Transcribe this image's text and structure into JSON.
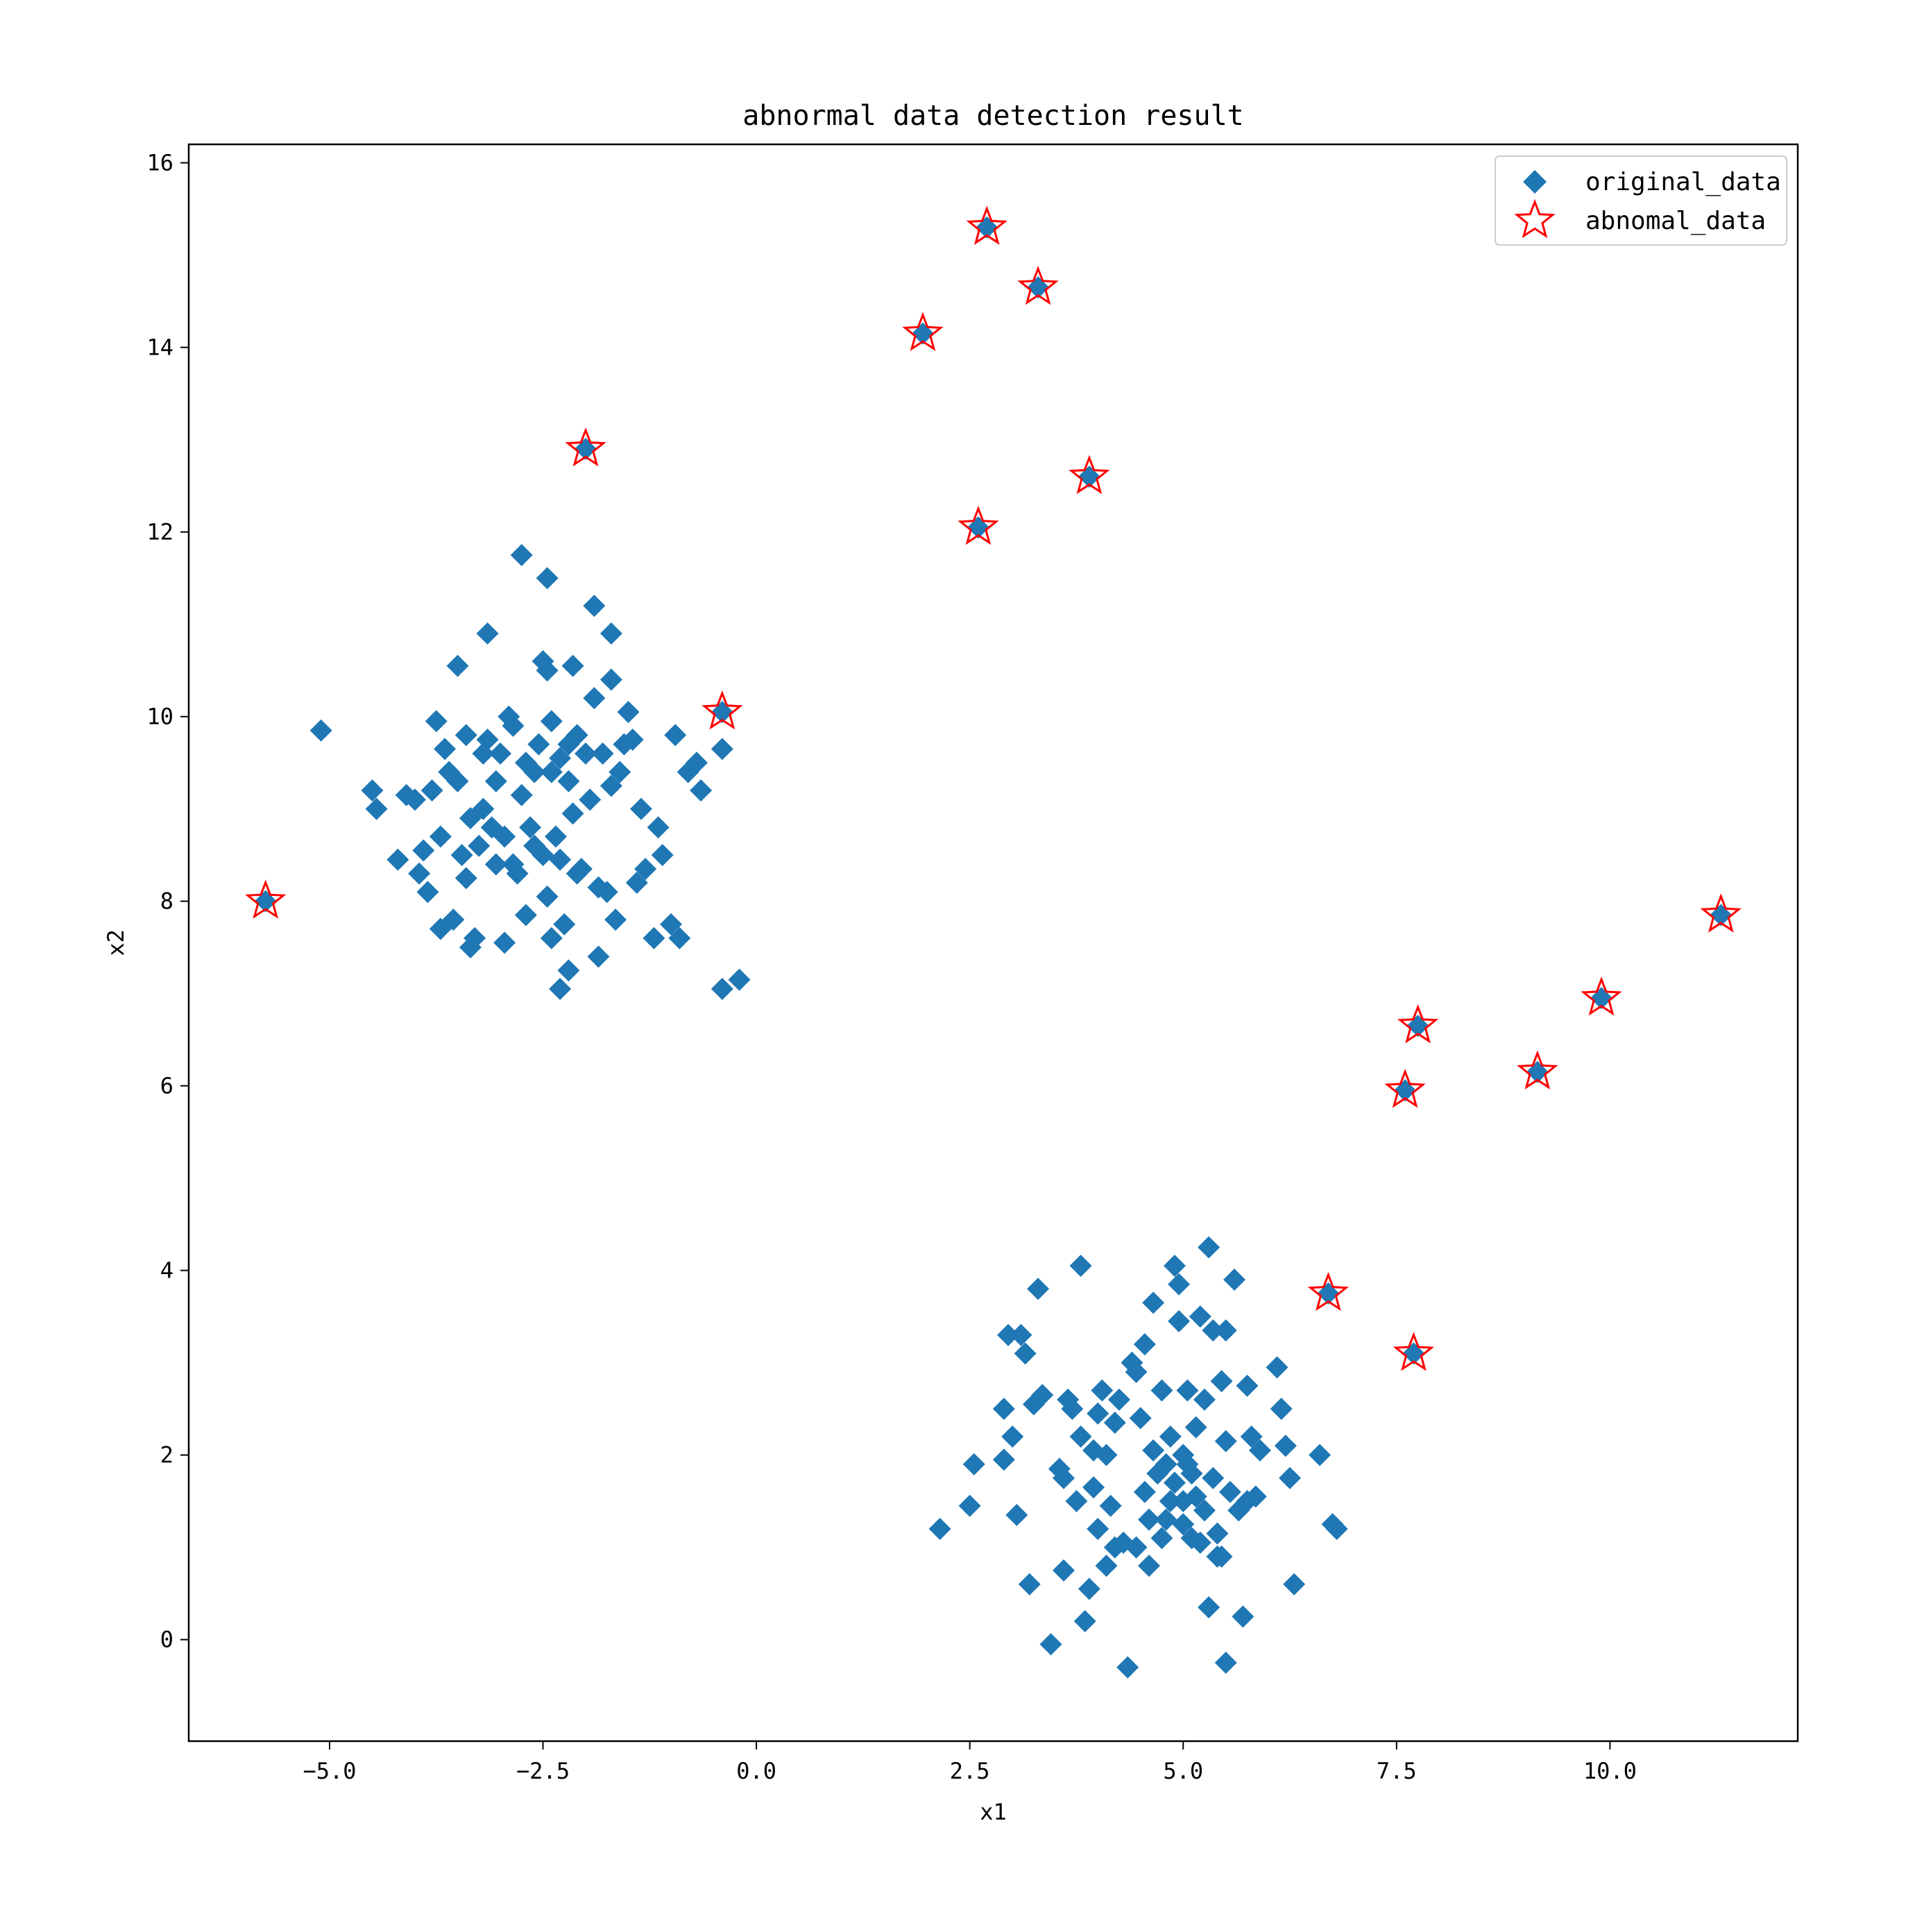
{
  "chart_data": {
    "type": "scatter",
    "title": "abnormal data detection result",
    "xlabel": "x1",
    "ylabel": "x2",
    "xlim": [
      -6.65,
      12.2
    ],
    "ylim": [
      -1.1,
      16.2
    ],
    "xticks": [
      -5.0,
      -2.5,
      0.0,
      2.5,
      5.0,
      7.5,
      10.0
    ],
    "xtick_labels": [
      "−5.0",
      "−2.5",
      "0.0",
      "2.5",
      "5.0",
      "7.5",
      "10.0"
    ],
    "yticks": [
      0,
      2,
      4,
      6,
      8,
      10,
      12,
      14,
      16
    ],
    "ytick_labels": [
      "0",
      "2",
      "4",
      "6",
      "8",
      "10",
      "12",
      "14",
      "16"
    ],
    "legend_position": "top-right",
    "series": [
      {
        "name": "original_data",
        "marker": "diamond",
        "color": "#1f77b4",
        "points": [
          [
            -5.1,
            9.85
          ],
          [
            -4.5,
            9.2
          ],
          [
            -4.45,
            9.0
          ],
          [
            -4.2,
            8.45
          ],
          [
            -4.1,
            9.15
          ],
          [
            -4.0,
            9.1
          ],
          [
            -3.95,
            8.3
          ],
          [
            -3.9,
            8.55
          ],
          [
            -3.85,
            8.1
          ],
          [
            -3.8,
            9.2
          ],
          [
            -3.75,
            9.95
          ],
          [
            -3.7,
            8.7
          ],
          [
            -3.65,
            9.65
          ],
          [
            -3.6,
            9.4
          ],
          [
            -3.55,
            7.8
          ],
          [
            -3.5,
            9.3
          ],
          [
            -3.45,
            8.5
          ],
          [
            -3.4,
            9.8
          ],
          [
            -3.35,
            8.9
          ],
          [
            -3.3,
            7.6
          ],
          [
            -3.25,
            8.6
          ],
          [
            -3.2,
            9.0
          ],
          [
            -3.15,
            9.75
          ],
          [
            -3.1,
            8.8
          ],
          [
            -3.05,
            8.4
          ],
          [
            -3.0,
            9.6
          ],
          [
            -2.95,
            8.7
          ],
          [
            -2.9,
            10.0
          ],
          [
            -2.85,
            9.9
          ],
          [
            -2.8,
            8.3
          ],
          [
            -2.75,
            9.15
          ],
          [
            -2.7,
            7.85
          ],
          [
            -2.65,
            8.8
          ],
          [
            -2.6,
            9.4
          ],
          [
            -2.55,
            9.7
          ],
          [
            -2.5,
            8.5
          ],
          [
            -2.45,
            8.05
          ],
          [
            -2.4,
            9.95
          ],
          [
            -2.35,
            8.7
          ],
          [
            -2.3,
            9.55
          ],
          [
            -2.25,
            7.75
          ],
          [
            -2.2,
            9.3
          ],
          [
            -2.15,
            8.95
          ],
          [
            -2.1,
            9.8
          ],
          [
            -2.05,
            8.35
          ],
          [
            -2.0,
            9.6
          ],
          [
            -1.95,
            9.1
          ],
          [
            -1.9,
            10.2
          ],
          [
            -1.85,
            8.15
          ],
          [
            -1.8,
            9.6
          ],
          [
            -1.75,
            8.1
          ],
          [
            -1.7,
            9.25
          ],
          [
            -1.65,
            7.8
          ],
          [
            -1.6,
            9.4
          ],
          [
            -1.55,
            9.7
          ],
          [
            -1.5,
            10.05
          ],
          [
            -1.45,
            9.75
          ],
          [
            -1.4,
            8.2
          ],
          [
            -1.35,
            9.0
          ],
          [
            -1.3,
            8.35
          ],
          [
            -1.2,
            7.6
          ],
          [
            -1.15,
            8.8
          ],
          [
            -1.1,
            8.5
          ],
          [
            -1.0,
            7.75
          ],
          [
            -0.95,
            9.8
          ],
          [
            -0.9,
            7.6
          ],
          [
            -0.8,
            9.4
          ],
          [
            -0.7,
            9.5
          ],
          [
            -0.65,
            9.2
          ],
          [
            -0.4,
            9.65
          ],
          [
            -0.4,
            7.05
          ],
          [
            -0.2,
            7.15
          ],
          [
            -3.5,
            10.55
          ],
          [
            -3.15,
            10.9
          ],
          [
            -2.75,
            11.75
          ],
          [
            -2.45,
            11.5
          ],
          [
            -2.45,
            10.5
          ],
          [
            -2.15,
            10.55
          ],
          [
            -1.9,
            11.2
          ],
          [
            -1.7,
            10.9
          ],
          [
            -1.7,
            10.4
          ],
          [
            -2.5,
            10.6
          ],
          [
            -3.35,
            7.5
          ],
          [
            -2.95,
            7.55
          ],
          [
            -2.4,
            7.6
          ],
          [
            -2.3,
            7.05
          ],
          [
            -2.2,
            7.25
          ],
          [
            -1.85,
            7.4
          ],
          [
            -3.7,
            7.7
          ],
          [
            -3.4,
            8.25
          ],
          [
            -2.85,
            8.4
          ],
          [
            -2.6,
            8.6
          ],
          [
            -2.3,
            8.45
          ],
          [
            -2.1,
            8.3
          ],
          [
            -3.05,
            9.3
          ],
          [
            -2.7,
            9.5
          ],
          [
            -2.4,
            9.4
          ],
          [
            -2.2,
            9.7
          ],
          [
            -3.2,
            9.6
          ],
          [
            2.15,
            1.2
          ],
          [
            2.5,
            1.45
          ],
          [
            2.55,
            1.9
          ],
          [
            2.9,
            2.5
          ],
          [
            2.9,
            1.95
          ],
          [
            2.95,
            3.3
          ],
          [
            3.0,
            2.2
          ],
          [
            3.05,
            1.35
          ],
          [
            3.1,
            3.3
          ],
          [
            3.15,
            3.1
          ],
          [
            3.2,
            0.6
          ],
          [
            3.25,
            2.55
          ],
          [
            3.3,
            3.8
          ],
          [
            3.35,
            2.65
          ],
          [
            3.45,
            -0.05
          ],
          [
            3.55,
            1.85
          ],
          [
            3.6,
            0.75
          ],
          [
            3.65,
            2.6
          ],
          [
            3.7,
            2.5
          ],
          [
            3.75,
            1.5
          ],
          [
            3.8,
            4.05
          ],
          [
            3.8,
            2.2
          ],
          [
            3.85,
            0.2
          ],
          [
            3.9,
            0.55
          ],
          [
            3.95,
            2.05
          ],
          [
            4.0,
            1.2
          ],
          [
            4.05,
            2.7
          ],
          [
            4.1,
            0.8
          ],
          [
            4.15,
            1.45
          ],
          [
            4.2,
            2.35
          ],
          [
            4.25,
            2.6
          ],
          [
            4.35,
            -0.3
          ],
          [
            4.4,
            3.0
          ],
          [
            4.45,
            1.0
          ],
          [
            4.5,
            2.4
          ],
          [
            4.55,
            3.2
          ],
          [
            4.6,
            0.8
          ],
          [
            4.65,
            3.65
          ],
          [
            4.7,
            1.8
          ],
          [
            4.75,
            2.7
          ],
          [
            4.8,
            1.3
          ],
          [
            4.85,
            2.2
          ],
          [
            4.9,
            4.05
          ],
          [
            4.95,
            3.85
          ],
          [
            5.0,
            1.5
          ],
          [
            5.05,
            1.9
          ],
          [
            5.1,
            1.1
          ],
          [
            5.15,
            2.3
          ],
          [
            5.2,
            3.5
          ],
          [
            5.25,
            2.6
          ],
          [
            5.3,
            4.25
          ],
          [
            5.35,
            1.75
          ],
          [
            5.4,
            0.9
          ],
          [
            5.45,
            2.8
          ],
          [
            5.5,
            -0.25
          ],
          [
            5.5,
            3.35
          ],
          [
            5.55,
            1.6
          ],
          [
            5.6,
            3.9
          ],
          [
            5.65,
            1.4
          ],
          [
            5.7,
            0.25
          ],
          [
            5.75,
            2.75
          ],
          [
            5.8,
            2.2
          ],
          [
            5.85,
            1.55
          ],
          [
            5.9,
            2.05
          ],
          [
            6.1,
            2.95
          ],
          [
            6.15,
            2.5
          ],
          [
            6.2,
            2.1
          ],
          [
            6.25,
            1.75
          ],
          [
            6.3,
            0.6
          ],
          [
            6.6,
            2.0
          ],
          [
            6.75,
            1.25
          ],
          [
            6.8,
            1.2
          ],
          [
            4.3,
            1.05
          ],
          [
            4.55,
            1.6
          ],
          [
            4.75,
            1.1
          ],
          [
            4.9,
            1.7
          ],
          [
            5.0,
            1.25
          ],
          [
            5.1,
            1.8
          ],
          [
            5.25,
            1.4
          ],
          [
            5.4,
            1.15
          ],
          [
            4.65,
            2.05
          ],
          [
            4.85,
            1.5
          ],
          [
            5.0,
            2.0
          ],
          [
            5.2,
            1.05
          ],
          [
            3.95,
            1.65
          ],
          [
            4.1,
            2.0
          ],
          [
            4.2,
            1.0
          ],
          [
            4.45,
            2.9
          ],
          [
            4.95,
            3.45
          ],
          [
            5.35,
            3.35
          ],
          [
            5.5,
            2.15
          ],
          [
            5.75,
            1.5
          ],
          [
            4.0,
            2.45
          ],
          [
            3.6,
            1.75
          ],
          [
            5.3,
            0.35
          ],
          [
            5.45,
            0.9
          ],
          [
            4.6,
            1.3
          ],
          [
            4.8,
            1.9
          ],
          [
            5.05,
            2.7
          ],
          [
            5.15,
            1.55
          ],
          [
            -5.75,
            8.0
          ],
          [
            -2.0,
            12.9
          ],
          [
            -0.4,
            10.05
          ],
          [
            1.95,
            14.15
          ],
          [
            2.6,
            12.05
          ],
          [
            2.7,
            15.3
          ],
          [
            3.3,
            14.65
          ],
          [
            3.9,
            12.6
          ],
          [
            6.7,
            3.75
          ],
          [
            7.6,
            5.95
          ],
          [
            7.7,
            3.1
          ],
          [
            7.75,
            6.65
          ],
          [
            9.15,
            6.15
          ],
          [
            9.9,
            6.95
          ],
          [
            11.3,
            7.85
          ]
        ]
      },
      {
        "name": "abnomal_data",
        "marker": "star-outline",
        "color": "#ff0000",
        "points": [
          [
            -5.75,
            8.0
          ],
          [
            -2.0,
            12.9
          ],
          [
            -0.4,
            10.05
          ],
          [
            1.95,
            14.15
          ],
          [
            2.6,
            12.05
          ],
          [
            2.7,
            15.3
          ],
          [
            3.3,
            14.65
          ],
          [
            3.9,
            12.6
          ],
          [
            6.7,
            3.75
          ],
          [
            7.6,
            5.95
          ],
          [
            7.7,
            3.1
          ],
          [
            7.75,
            6.65
          ],
          [
            9.15,
            6.15
          ],
          [
            9.9,
            6.95
          ],
          [
            11.3,
            7.85
          ]
        ]
      }
    ]
  }
}
